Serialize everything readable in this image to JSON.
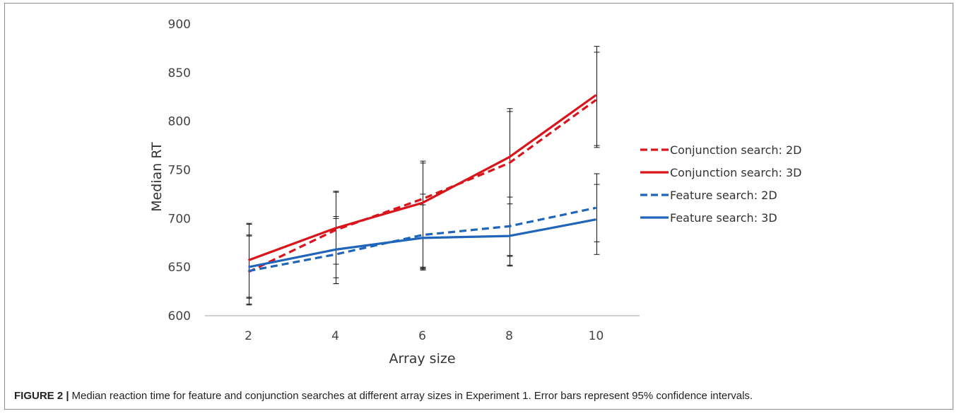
{
  "figure": {
    "caption_label": "FIGURE 2 |",
    "caption_text": "Median reaction time for feature and conjunction searches at different array sizes in Experiment 1. Error bars represent 95% confidence intervals."
  },
  "chart_data": {
    "type": "line",
    "xlabel": "Array size",
    "ylabel": "Median RT",
    "x": [
      2,
      4,
      6,
      8,
      10
    ],
    "ylim": [
      600,
      900
    ],
    "yticks": [
      600,
      650,
      700,
      750,
      800,
      850,
      900
    ],
    "grid": false,
    "legend_position": "right",
    "series": [
      {
        "name": "Conjunction search: 2D",
        "color": "#d9141b",
        "dashed": true,
        "values": [
          645,
          688,
          720,
          757,
          822
        ],
        "err_low": [
          612,
          633,
          649,
          662,
          775
        ],
        "err_high": [
          694,
          728,
          759,
          813,
          877
        ]
      },
      {
        "name": "Conjunction search: 3D",
        "color": "#d9141b",
        "dashed": false,
        "values": [
          657,
          690,
          716,
          763,
          827
        ],
        "err_low": [
          611,
          653,
          648,
          652,
          773
        ],
        "err_high": [
          683,
          727,
          757,
          810,
          871
        ]
      },
      {
        "name": "Feature search: 2D",
        "color": "#1f65b9",
        "dashed": true,
        "values": [
          646,
          663,
          683,
          692,
          711
        ],
        "err_low": [
          618,
          633,
          650,
          661,
          676
        ],
        "err_high": [
          682,
          700,
          725,
          722,
          746
        ]
      },
      {
        "name": "Feature search: 3D",
        "color": "#1f65b9",
        "dashed": false,
        "values": [
          650,
          668,
          680,
          682,
          699
        ],
        "err_low": [
          619,
          639,
          647,
          651,
          663
        ],
        "err_high": [
          695,
          702,
          714,
          715,
          735
        ]
      }
    ]
  }
}
